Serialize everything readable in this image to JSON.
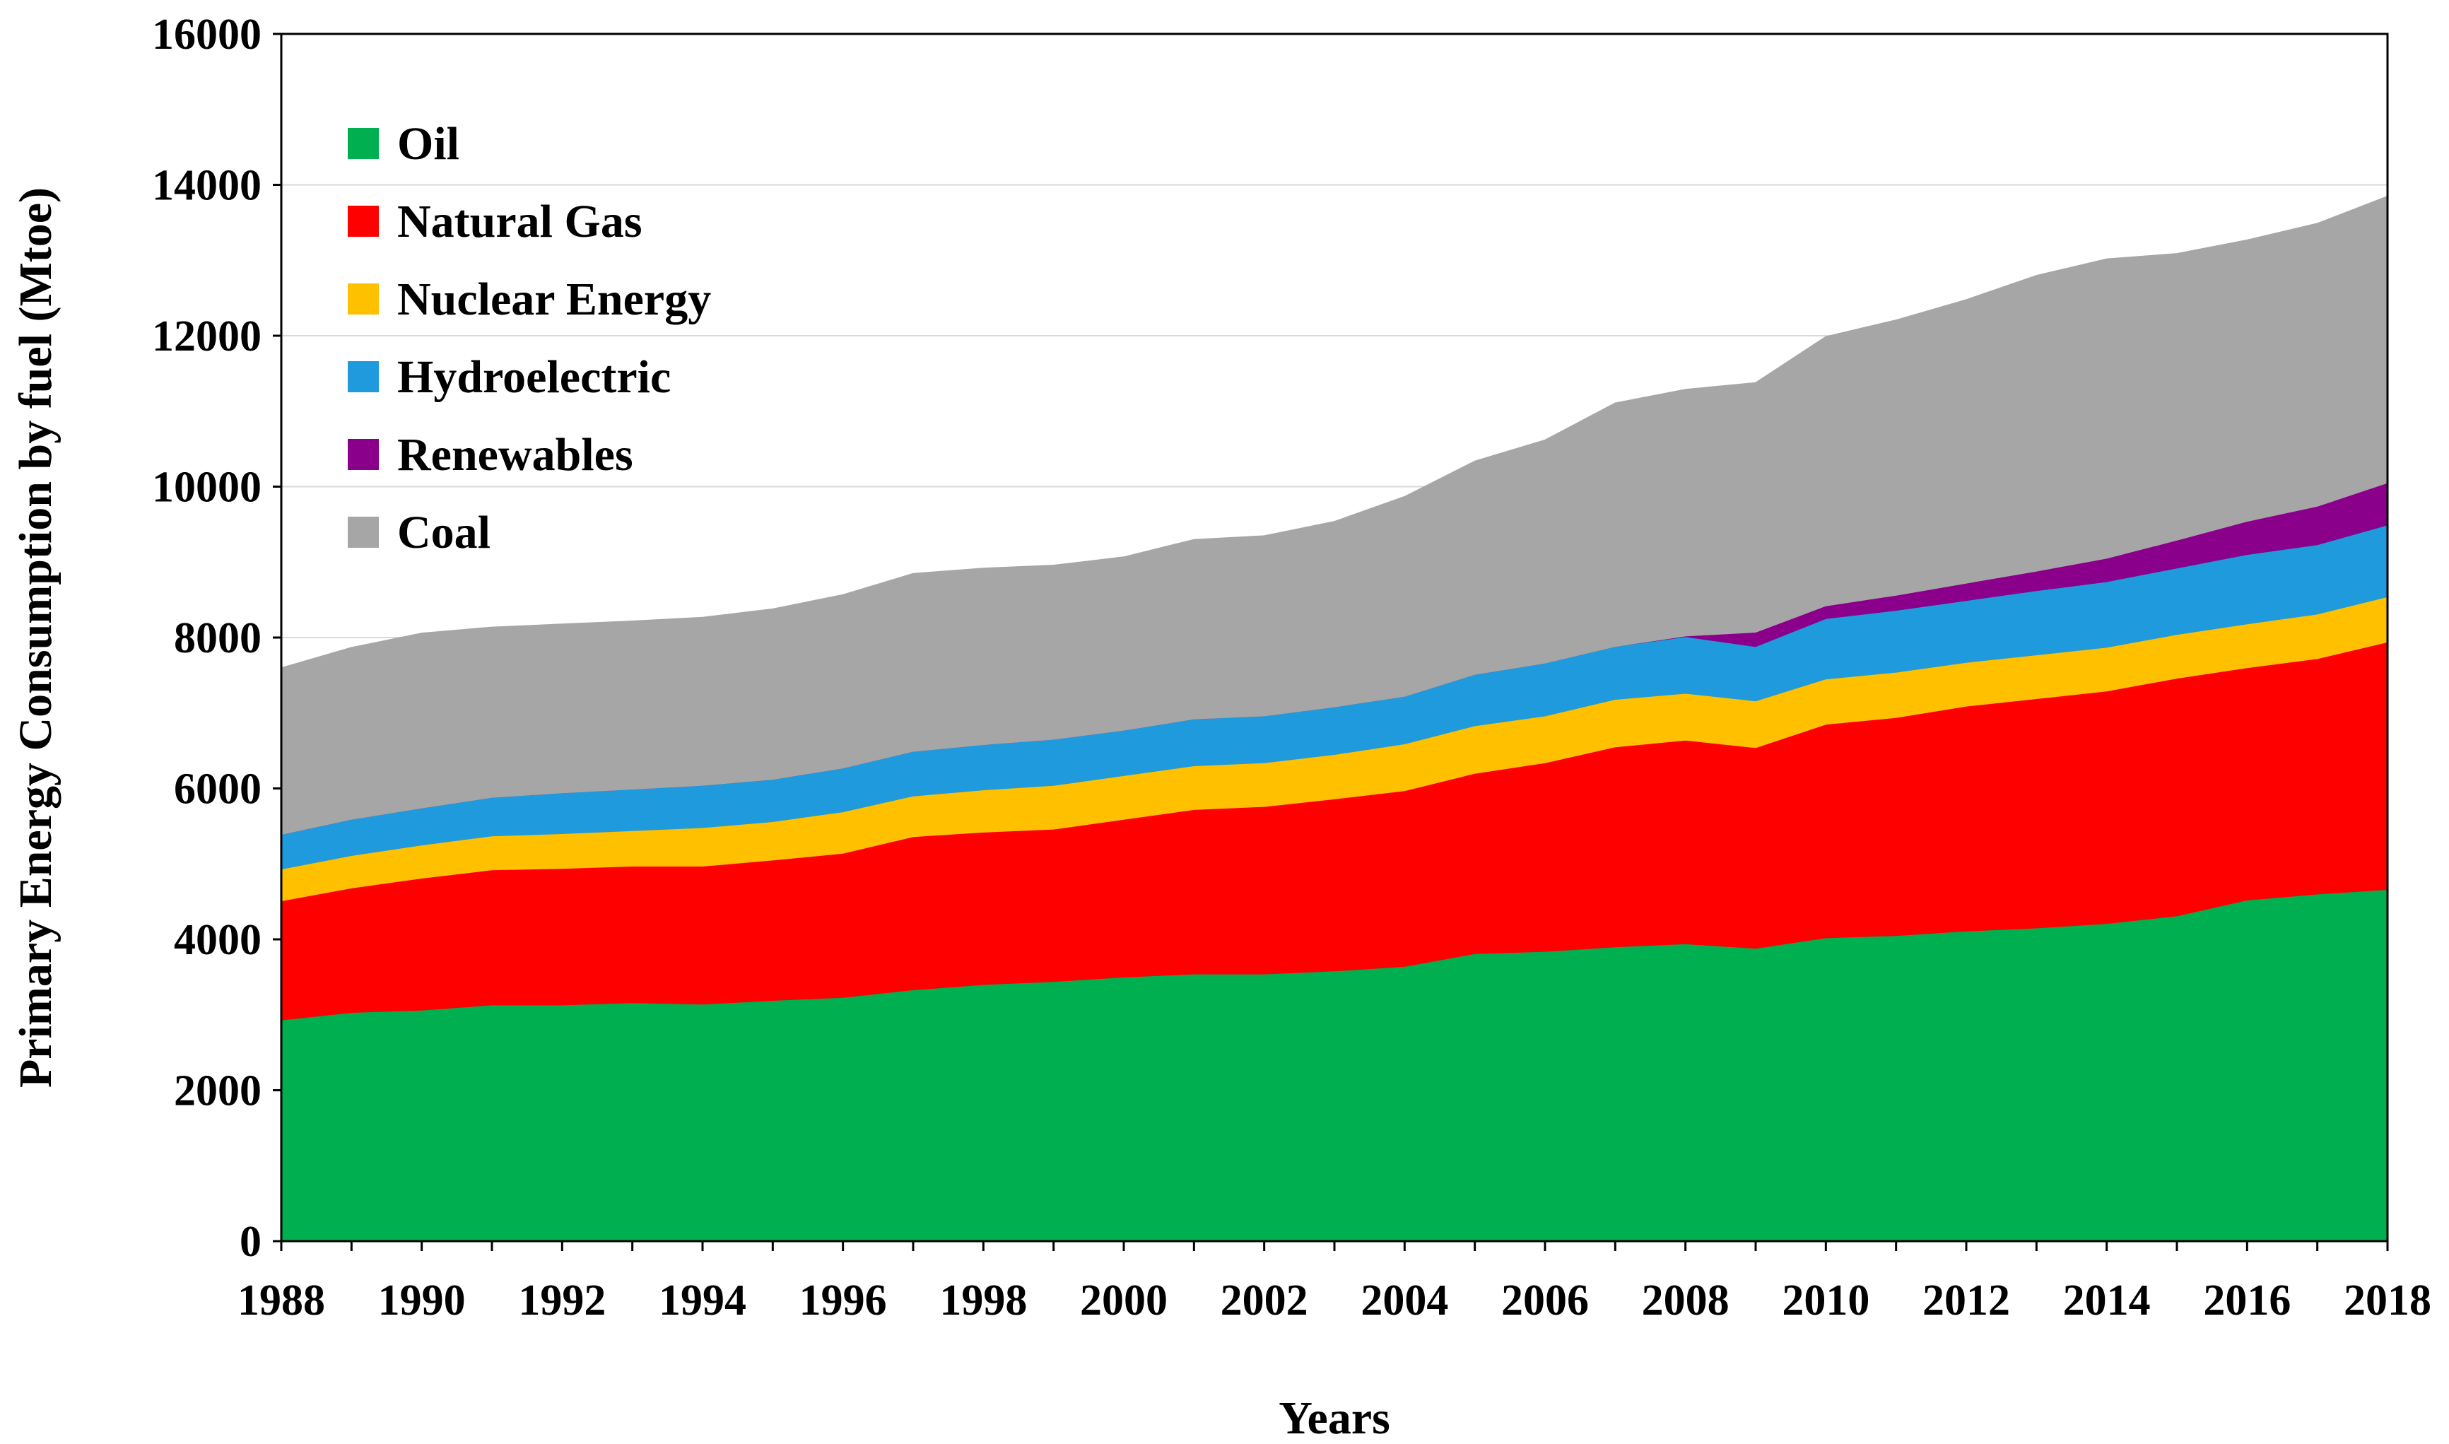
{
  "chart_data": {
    "type": "area",
    "stacked": true,
    "title": "",
    "xlabel": "Years",
    "ylabel": "Primary Energy Consumption by fuel (Mtoe)",
    "xlim": [
      1988,
      2018
    ],
    "ylim": [
      0,
      16000
    ],
    "x_ticks": [
      "1988",
      "1990",
      "1992",
      "1994",
      "1996",
      "1998",
      "2000",
      "2002",
      "2004",
      "2006",
      "2008",
      "2010",
      "2012",
      "2014",
      "2016",
      "2018"
    ],
    "y_ticks": [
      "0",
      "2000",
      "4000",
      "6000",
      "8000",
      "10000",
      "12000",
      "14000",
      "16000"
    ],
    "grid": true,
    "legend_position": "top-left",
    "x": [
      1988,
      1989,
      1990,
      1991,
      1992,
      1993,
      1994,
      1995,
      1996,
      1997,
      1998,
      1999,
      2000,
      2001,
      2002,
      2003,
      2004,
      2005,
      2006,
      2007,
      2008,
      2009,
      2010,
      2011,
      2012,
      2013,
      2014,
      2015,
      2016,
      2017,
      2018
    ],
    "series": [
      {
        "name": "Oil",
        "color": "#00b050",
        "values": [
          2930,
          3030,
          3060,
          3130,
          3130,
          3160,
          3140,
          3190,
          3230,
          3330,
          3400,
          3440,
          3500,
          3540,
          3540,
          3580,
          3640,
          3810,
          3840,
          3900,
          3940,
          3880,
          4020,
          4050,
          4110,
          4150,
          4210,
          4310,
          4520,
          4600,
          4660
        ]
      },
      {
        "name": "Natural Gas",
        "color": "#ff0000",
        "values": [
          1580,
          1650,
          1750,
          1790,
          1810,
          1810,
          1830,
          1860,
          1910,
          2030,
          2020,
          2020,
          2090,
          2180,
          2220,
          2280,
          2330,
          2390,
          2500,
          2650,
          2700,
          2660,
          2830,
          2890,
          2980,
          3040,
          3080,
          3150,
          3080,
          3120,
          3280
        ]
      },
      {
        "name": "Nuclear Energy",
        "color": "#ffc000",
        "values": [
          420,
          430,
          440,
          450,
          460,
          470,
          510,
          510,
          550,
          540,
          560,
          580,
          580,
          580,
          580,
          590,
          620,
          630,
          620,
          630,
          620,
          620,
          600,
          600,
          580,
          580,
          580,
          580,
          580,
          590,
          600
        ]
      },
      {
        "name": "Hydroelectric",
        "color": "#1f9bdd",
        "values": [
          460,
          480,
          490,
          510,
          540,
          550,
          560,
          560,
          580,
          590,
          600,
          610,
          600,
          620,
          620,
          630,
          630,
          680,
          700,
          700,
          750,
          720,
          800,
          820,
          820,
          850,
          870,
          880,
          920,
          920,
          950
        ]
      },
      {
        "name": "Renewables",
        "color": "#8b008b",
        "values": [
          0,
          0,
          0,
          0,
          0,
          0,
          0,
          0,
          0,
          0,
          0,
          0,
          0,
          0,
          0,
          0,
          0,
          0,
          0,
          0,
          10,
          190,
          170,
          200,
          230,
          260,
          310,
          370,
          440,
          510,
          560
        ]
      },
      {
        "name": "Coal",
        "color": "#a6a6a6",
        "values": [
          2210,
          2280,
          2320,
          2260,
          2240,
          2230,
          2230,
          2260,
          2300,
          2360,
          2340,
          2310,
          2300,
          2380,
          2390,
          2460,
          2650,
          2830,
          2960,
          3230,
          3270,
          3310,
          3570,
          3650,
          3760,
          3920,
          3970,
          3800,
          3730,
          3750,
          3800
        ]
      }
    ]
  }
}
